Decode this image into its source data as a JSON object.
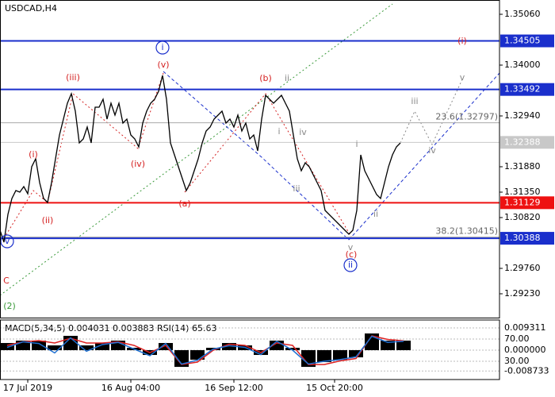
{
  "chart_data": [
    {
      "type": "line",
      "title": "USDCAD,H4",
      "x": [
        0,
        1,
        2,
        3,
        4,
        5,
        6,
        7,
        8,
        9,
        10,
        11,
        12,
        13,
        14,
        15,
        16,
        17,
        18,
        19,
        20,
        21,
        22,
        23,
        24,
        25,
        26,
        27,
        28,
        29,
        30,
        31,
        32,
        33,
        34,
        35,
        36,
        37,
        38,
        39,
        40,
        41,
        42,
        43,
        44,
        45,
        46,
        47,
        48,
        49,
        50,
        51,
        52,
        53,
        54,
        55,
        56,
        57,
        58,
        59,
        60,
        61,
        62,
        63,
        64,
        65,
        66,
        67,
        68,
        69,
        70,
        71,
        72,
        73,
        74,
        75,
        76,
        77,
        78,
        79,
        80,
        81,
        82,
        83,
        84,
        85,
        86,
        87,
        88,
        89,
        90,
        91,
        92,
        93,
        94,
        95,
        96,
        97,
        98,
        99,
        100,
        101
      ],
      "series": [
        {
          "color": "#000000",
          "values": [
            1.30555,
            1.30307,
            1.30886,
            1.31217,
            1.31383,
            1.3135,
            1.31466,
            1.31317,
            1.3188,
            1.32046,
            1.31549,
            1.31217,
            1.31135,
            1.31549,
            1.32046,
            1.32542,
            1.32874,
            1.33205,
            1.33404,
            1.33039,
            1.32377,
            1.3246,
            1.32708,
            1.32377,
            1.33122,
            1.33122,
            1.33288,
            1.32874,
            1.33205,
            1.32957,
            1.33205,
            1.32791,
            1.32874,
            1.32542,
            1.3246,
            1.32294,
            1.32791,
            1.33039,
            1.33205,
            1.33288,
            1.33453,
            1.33785,
            1.33288,
            1.32377,
            1.32128,
            1.3188,
            1.31632,
            1.31383,
            1.31549,
            1.31797,
            1.32046,
            1.32377,
            1.32625,
            1.32708,
            1.32874,
            1.32957,
            1.33039,
            1.32791,
            1.32874,
            1.32708,
            1.32957,
            1.32625,
            1.32791,
            1.3246,
            1.32542,
            1.32211,
            1.32874,
            1.33371,
            1.33288,
            1.33205,
            1.33288,
            1.33371,
            1.33205,
            1.33039,
            1.32542,
            1.32046,
            1.31797,
            1.31963,
            1.3188,
            1.31714,
            1.31549,
            1.31383,
            1.30969,
            1.30886,
            1.30803,
            1.30721,
            1.30638,
            1.30555,
            1.30472,
            1.30555,
            1.30969,
            1.32128,
            1.31797,
            1.31632,
            1.31466,
            1.313,
            1.31217,
            1.31549,
            1.3188,
            1.32128,
            1.32294,
            1.32377
          ]
        }
      ],
      "xlim": [
        0,
        126
      ],
      "xticks": [
        {
          "value": 7,
          "label": "17 Jul 2019"
        },
        {
          "value": 33,
          "label": "16 Aug 04:00"
        },
        {
          "value": 59,
          "label": "16 Sep 12:00"
        },
        {
          "value": 84.4,
          "label": "15 Oct 20:00"
        }
      ],
      "ylim": [
        1.28766,
        1.35325
      ],
      "yticks": [
        {
          "value": 1.3506,
          "label": "1.35060"
        },
        {
          "value": 1.34,
          "label": "1.34000"
        },
        {
          "value": 1.3294,
          "label": "1.32940"
        },
        {
          "value": 1.3188,
          "label": "1.31880"
        },
        {
          "value": 1.3135,
          "label": "1.31350"
        },
        {
          "value": 1.3082,
          "label": "1.30820"
        },
        {
          "value": 1.2976,
          "label": "1.29760"
        },
        {
          "value": 1.2923,
          "label": "1.29230"
        }
      ],
      "levels": [
        {
          "value": 1.34505,
          "color": "#1a2fcc"
        },
        {
          "value": 1.33492,
          "color": "#1a2fcc"
        },
        {
          "value": 1.31129,
          "color": "#ee1111"
        },
        {
          "value": 1.30388,
          "color": "#1a2fcc"
        }
      ],
      "current_price": 1.32388,
      "fib_levels": [
        {
          "value": 1.32797,
          "label": "23.6(1.32797)"
        },
        {
          "value": 1.30415,
          "label": "38.2(1.30415)"
        }
      ],
      "annotations": [
        {
          "text": "(i)",
          "color": "#d42020"
        },
        {
          "text": "(ii)",
          "color": "#d42020"
        },
        {
          "text": "(iii)",
          "color": "#d42020"
        },
        {
          "text": "(iv)",
          "color": "#d42020"
        },
        {
          "text": "(v)",
          "color": "#d42020"
        },
        {
          "text": "(a)",
          "color": "#d42020"
        },
        {
          "text": "(b)",
          "color": "#d42020"
        },
        {
          "text": "(c)",
          "color": "#d42020"
        },
        {
          "text": "(i)",
          "color": "#d42020"
        },
        {
          "text": "C",
          "color": "#d42020"
        },
        {
          "text": "i",
          "color": "#1a2fcc",
          "circled": true
        },
        {
          "text": "v",
          "color": "#1a2fcc",
          "circled": true
        },
        {
          "text": "ii",
          "color": "#1a2fcc",
          "circled": true
        },
        {
          "text": "ii",
          "color": "#888888"
        },
        {
          "text": "i",
          "color": "#888888"
        },
        {
          "text": "iv",
          "color": "#888888"
        },
        {
          "text": "iii",
          "color": "#888888"
        },
        {
          "text": "i",
          "color": "#888888"
        },
        {
          "text": "ii",
          "color": "#888888"
        },
        {
          "text": "v",
          "color": "#888888"
        },
        {
          "text": "iii",
          "color": "#888888"
        },
        {
          "text": "iv",
          "color": "#888888"
        },
        {
          "text": "v",
          "color": "#888888"
        },
        {
          "text": "(2)",
          "color": "#3a9a3a"
        }
      ]
    },
    {
      "type": "macd",
      "header": "MACD(5,34,5) 0.004031 0.003883 RSI(14) 65.63",
      "x": [
        0,
        4,
        8,
        12,
        16,
        20,
        24,
        28,
        32,
        36,
        40,
        44,
        48,
        52,
        56,
        60,
        64,
        68,
        72,
        76,
        80,
        84,
        88,
        92,
        96,
        100
      ],
      "xlim": [
        0,
        126
      ],
      "series": [
        {
          "color": "#000000",
          "values": [
            0.003,
            0.004,
            0.004,
            0.002,
            0.006,
            0.002,
            0.003,
            0.004,
            0.001,
            -0.002,
            0.003,
            -0.007,
            -0.004,
            0.001,
            0.003,
            0.002,
            -0.002,
            0.004,
            0.001,
            -0.007,
            -0.005,
            -0.004,
            -0.003,
            0.007,
            0.004,
            0.004
          ]
        },
        {
          "color": "#dd2222",
          "values": [
            0.002,
            0.0035,
            0.004,
            0.003,
            0.005,
            0.003,
            0.003,
            0.0035,
            0.002,
            -0.001,
            0.002,
            -0.006,
            -0.005,
            0,
            0.0025,
            0.002,
            -0.001,
            0.003,
            0.002,
            -0.006,
            -0.006,
            -0.0045,
            -0.0035,
            0.006,
            0.0045,
            0.0039
          ]
        },
        {
          "color": "#1e6fd0",
          "axis": "y2",
          "values": [
            55,
            65,
            62,
            45,
            72,
            48,
            60,
            64,
            52,
            40,
            62,
            25,
            32,
            52,
            58,
            55,
            42,
            66,
            50,
            25,
            30,
            33,
            38,
            75,
            64,
            66
          ]
        }
      ],
      "ylim": [
        -0.0123,
        0.01264
      ],
      "yticks": [
        0.009311,
        {
          "value": 0,
          "label": "0.000000"
        },
        -0.008733
      ],
      "y2lim": [
        -2.9,
        104.3
      ],
      "y2ticks": [
        {
          "value": 70,
          "label": "70.00"
        },
        {
          "value": 30,
          "label": "30.00"
        }
      ]
    }
  ]
}
